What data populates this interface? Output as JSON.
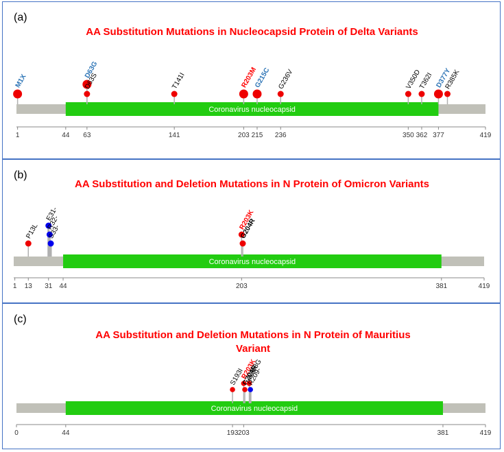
{
  "panels": [
    {
      "label": "(a)",
      "title": "AA Substitution Mutations in Nucleocapsid Protein of Delta Variants",
      "domain_label": "Coronavirus nucleocapsid",
      "length": 419,
      "domain_start": 44,
      "domain_end": 377,
      "ticks": [
        1,
        44,
        63,
        141,
        203,
        215,
        236,
        350,
        362,
        377,
        419
      ],
      "mutations": [
        {
          "name": "M1X",
          "pos": 1,
          "color": "#2e75b6",
          "bold": true,
          "marker": "large",
          "level": 0
        },
        {
          "name": "D63G",
          "pos": 63,
          "color": "#2e75b6",
          "bold": true,
          "marker": "large",
          "level": 1
        },
        {
          "name": "D63S",
          "pos": 63,
          "color": "#000000",
          "bold": false,
          "marker": "small",
          "level": 0
        },
        {
          "name": "T141I",
          "pos": 141,
          "color": "#000000",
          "bold": false,
          "marker": "small",
          "level": 0
        },
        {
          "name": "R203M",
          "pos": 203,
          "color": "#ff0000",
          "bold": true,
          "marker": "large",
          "level": 0
        },
        {
          "name": "G215C",
          "pos": 215,
          "color": "#2e75b6",
          "bold": true,
          "marker": "large",
          "level": 0
        },
        {
          "name": "G236V",
          "pos": 236,
          "color": "#000000",
          "bold": false,
          "marker": "small",
          "level": 0
        },
        {
          "name": "V350D",
          "pos": 350,
          "color": "#000000",
          "bold": false,
          "marker": "small",
          "level": 0
        },
        {
          "name": "T362I",
          "pos": 362,
          "color": "#000000",
          "bold": false,
          "marker": "small",
          "level": 0
        },
        {
          "name": "D377Y",
          "pos": 377,
          "color": "#2e75b6",
          "bold": true,
          "marker": "large",
          "level": 0
        },
        {
          "name": "R385K",
          "pos": 385,
          "color": "#000000",
          "bold": false,
          "marker": "small",
          "level": 0
        }
      ]
    },
    {
      "label": "(b)",
      "title": "AA Substitution and Deletion Mutations in N Protein of Omicron Variants",
      "domain_label": "Coronavirus nucleocapsid",
      "length": 419,
      "domain_start": 44,
      "domain_end": 381,
      "ticks": [
        1,
        13,
        31,
        44,
        203,
        381,
        419
      ],
      "mutations": [
        {
          "name": "P13L",
          "pos": 13,
          "color": "#000000",
          "bold": false,
          "marker": "small",
          "level": 0
        },
        {
          "name": "E31-",
          "pos": 31,
          "color": "#000000",
          "bold": false,
          "marker": "deletion",
          "level": 2
        },
        {
          "name": "R32-",
          "pos": 32,
          "color": "#000000",
          "bold": false,
          "marker": "deletion",
          "level": 1
        },
        {
          "name": "S33-",
          "pos": 33,
          "color": "#000000",
          "bold": false,
          "marker": "deletion",
          "level": 0
        },
        {
          "name": "R203K",
          "pos": 203,
          "color": "#ff0000",
          "bold": true,
          "marker": "small",
          "level": 1
        },
        {
          "name": "G204R",
          "pos": 204,
          "color": "#000000",
          "bold": true,
          "marker": "small",
          "level": 0
        }
      ]
    },
    {
      "label": "(c)",
      "title": "AA Substitution and Deletion Mutations in N Protein of Mauritius Variant",
      "title_line1": "AA Substitution and Deletion Mutations in N Protein of Mauritius",
      "title_line2": "Variant",
      "domain_label": "Coronavirus nucleocapsid",
      "length": 419,
      "domain_start": 44,
      "domain_end": 381,
      "ticks": [
        0,
        44,
        193,
        203,
        381,
        419
      ],
      "mutations": [
        {
          "name": "S193I",
          "pos": 193,
          "color": "#000000",
          "bold": false,
          "marker": "small",
          "level": 0
        },
        {
          "name": "R203K",
          "pos": 203,
          "color": "#ff0000",
          "bold": true,
          "marker": "small",
          "level": 1
        },
        {
          "name": "G204R",
          "pos": 204,
          "color": "#000000",
          "bold": true,
          "marker": "small",
          "level": 0
        },
        {
          "name": "A208G",
          "pos": 208,
          "color": "#000000",
          "bold": false,
          "marker": "small",
          "level": 1
        },
        {
          "name": "R209-",
          "pos": 209,
          "color": "#000000",
          "bold": false,
          "marker": "deletion",
          "level": 0
        }
      ]
    }
  ],
  "colors": {
    "domain_fill": "#22cc11",
    "backbone": "#c0c0b8",
    "substitution_marker": "#ee0000",
    "deletion_marker": "#0000ee",
    "stem": "#b0b0b0",
    "panel_border": "#4472c4",
    "title": "#ff0000"
  }
}
